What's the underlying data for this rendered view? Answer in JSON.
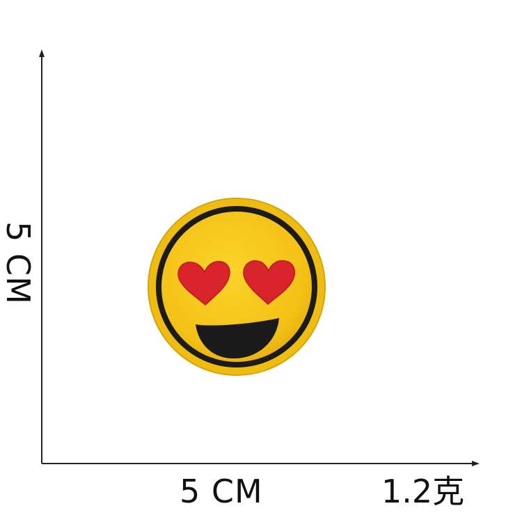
{
  "dimensions": {
    "width_label": "5 CM",
    "height_label": "5 CM"
  },
  "weight_label": "1.2克",
  "patch": {
    "icon": "heart-eyes-smiley-icon",
    "colors": {
      "face": "#f6c317",
      "outline": "#1b1b1b",
      "hearts": "#d8242a",
      "mouth": "#1a1a1a",
      "background": "#ffffff"
    }
  }
}
